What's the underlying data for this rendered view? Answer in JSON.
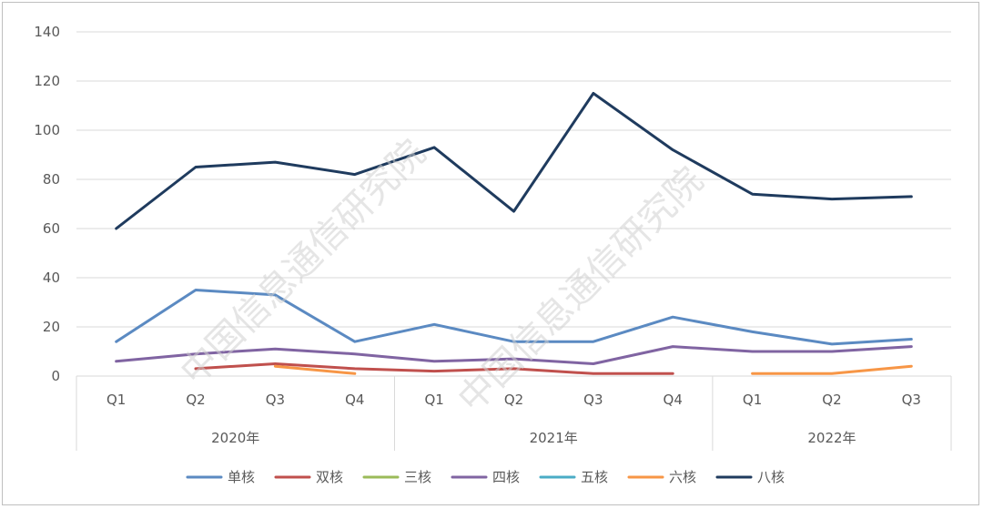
{
  "chart_data": {
    "type": "line",
    "ylim": [
      0,
      140
    ],
    "y_ticks": [
      0,
      20,
      40,
      60,
      80,
      100,
      120,
      140
    ],
    "grid": true,
    "legend_position": "bottom",
    "groups": [
      {
        "label": "2020年",
        "categories": [
          "Q1",
          "Q2",
          "Q3",
          "Q4"
        ]
      },
      {
        "label": "2021年",
        "categories": [
          "Q1",
          "Q2",
          "Q3",
          "Q4"
        ]
      },
      {
        "label": "2022年",
        "categories": [
          "Q1",
          "Q2",
          "Q3"
        ]
      }
    ],
    "series": [
      {
        "name": "单核",
        "color": "#5b8ac2",
        "values": [
          14,
          35,
          33,
          14,
          21,
          14,
          14,
          24,
          18,
          13,
          15
        ]
      },
      {
        "name": "双核",
        "color": "#c0504d",
        "values": [
          null,
          3,
          5,
          3,
          2,
          3,
          1,
          1,
          null,
          null,
          null
        ]
      },
      {
        "name": "三核",
        "color": "#9bbb59",
        "values": [
          null,
          null,
          null,
          null,
          null,
          null,
          null,
          null,
          null,
          null,
          null
        ]
      },
      {
        "name": "四核",
        "color": "#8064a2",
        "values": [
          6,
          9,
          11,
          9,
          6,
          7,
          5,
          12,
          10,
          10,
          12
        ]
      },
      {
        "name": "五核",
        "color": "#4bacc6",
        "values": [
          null,
          null,
          null,
          null,
          null,
          null,
          null,
          null,
          null,
          null,
          null
        ]
      },
      {
        "name": "六核",
        "color": "#f79646",
        "values": [
          null,
          null,
          4,
          1,
          null,
          null,
          null,
          null,
          1,
          1,
          4
        ]
      },
      {
        "name": "八核",
        "color": "#1f3b5e",
        "values": [
          60,
          85,
          87,
          82,
          93,
          67,
          115,
          92,
          74,
          72,
          73
        ]
      }
    ]
  },
  "watermark": {
    "text": "中国信息通信研究院"
  }
}
